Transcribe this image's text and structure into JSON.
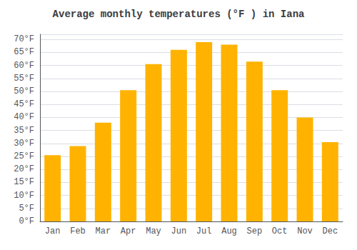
{
  "chart_data": {
    "type": "bar",
    "title": "Average monthly temperatures (°F ) in Iana",
    "categories": [
      "Jan",
      "Feb",
      "Mar",
      "Apr",
      "May",
      "Jun",
      "Jul",
      "Aug",
      "Sep",
      "Oct",
      "Nov",
      "Dec"
    ],
    "values": [
      25.5,
      29,
      38,
      50.5,
      60.5,
      66,
      69,
      68,
      61.5,
      50.5,
      40,
      30.5
    ],
    "color": "#FFB300",
    "ylim": [
      0,
      72
    ],
    "yticks": [
      {
        "value": 0,
        "label": "0°F"
      },
      {
        "value": 5,
        "label": "5°F"
      },
      {
        "value": 10,
        "label": "10°F"
      },
      {
        "value": 15,
        "label": "15°F"
      },
      {
        "value": 20,
        "label": "20°F"
      },
      {
        "value": 25,
        "label": "25°F"
      },
      {
        "value": 30,
        "label": "30°F"
      },
      {
        "value": 35,
        "label": "35°F"
      },
      {
        "value": 40,
        "label": "40°F"
      },
      {
        "value": 45,
        "label": "45°F"
      },
      {
        "value": 50,
        "label": "50°F"
      },
      {
        "value": 55,
        "label": "55°F"
      },
      {
        "value": 60,
        "label": "60°F"
      },
      {
        "value": 65,
        "label": "65°F"
      },
      {
        "value": 70,
        "label": "70°F"
      }
    ],
    "grid": true
  }
}
